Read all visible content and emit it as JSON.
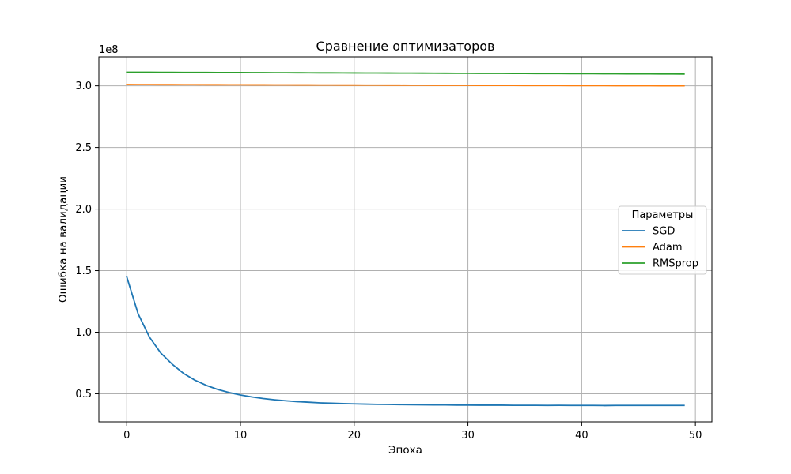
{
  "chart_data": {
    "type": "line",
    "title": "Сравнение оптимизаторов",
    "xlabel": "Эпоха",
    "ylabel": "Ошибка на валидации",
    "y_multiplier_label": "1e8",
    "xlim": [
      -2.45,
      51.45
    ],
    "ylim": [
      0.272,
      3.235
    ],
    "x_ticks": [
      0,
      10,
      20,
      30,
      40,
      50
    ],
    "y_ticks": [
      0.5,
      1.0,
      1.5,
      2.0,
      2.5,
      3.0
    ],
    "x_tick_labels": [
      "0",
      "10",
      "20",
      "30",
      "40",
      "50"
    ],
    "y_tick_labels": [
      "0.5",
      "1.0",
      "1.5",
      "2.0",
      "2.5",
      "3.0"
    ],
    "grid": true,
    "legend": {
      "title": "Параметры",
      "position": "center-right"
    },
    "x": [
      0,
      1,
      2,
      3,
      4,
      5,
      6,
      7,
      8,
      9,
      10,
      11,
      12,
      13,
      14,
      15,
      16,
      17,
      18,
      19,
      20,
      21,
      22,
      23,
      24,
      25,
      26,
      27,
      28,
      29,
      30,
      31,
      32,
      33,
      34,
      35,
      36,
      37,
      38,
      39,
      40,
      41,
      42,
      43,
      44,
      45,
      46,
      47,
      48,
      49
    ],
    "series": [
      {
        "name": "SGD",
        "color": "#1f77b4",
        "values": [
          1.45,
          1.15,
          0.96,
          0.83,
          0.74,
          0.665,
          0.61,
          0.568,
          0.535,
          0.51,
          0.49,
          0.474,
          0.461,
          0.451,
          0.443,
          0.436,
          0.431,
          0.426,
          0.423,
          0.42,
          0.418,
          0.416,
          0.414,
          0.413,
          0.412,
          0.411,
          0.41,
          0.409,
          0.409,
          0.408,
          0.408,
          0.407,
          0.407,
          0.407,
          0.406,
          0.406,
          0.406,
          0.405,
          0.406,
          0.405,
          0.405,
          0.405,
          0.404,
          0.405,
          0.405,
          0.405,
          0.405,
          0.405,
          0.405,
          0.405
        ]
      },
      {
        "name": "Adam",
        "color": "#ff7f0e",
        "values": [
          3.01,
          3.0098,
          3.0096,
          3.0094,
          3.0092,
          3.009,
          3.0088,
          3.0086,
          3.0084,
          3.0082,
          3.008,
          3.0078,
          3.0076,
          3.0074,
          3.0072,
          3.007,
          3.0068,
          3.0066,
          3.0064,
          3.0062,
          3.006,
          3.0058,
          3.0056,
          3.0054,
          3.0052,
          3.005,
          3.0048,
          3.0046,
          3.0044,
          3.0042,
          3.004,
          3.0038,
          3.0036,
          3.0034,
          3.0032,
          3.003,
          3.0028,
          3.0026,
          3.0024,
          3.0022,
          3.002,
          3.0018,
          3.0016,
          3.0014,
          3.0012,
          3.001,
          3.0008,
          3.0006,
          3.0004,
          3.0
        ]
      },
      {
        "name": "RMSprop",
        "color": "#2ca02c",
        "values": [
          3.11,
          3.1097,
          3.1094,
          3.1091,
          3.1088,
          3.1085,
          3.1082,
          3.1079,
          3.1076,
          3.1073,
          3.107,
          3.1067,
          3.1064,
          3.1061,
          3.1058,
          3.1055,
          3.1052,
          3.1049,
          3.1046,
          3.1043,
          3.104,
          3.1037,
          3.1034,
          3.1031,
          3.1028,
          3.1025,
          3.1022,
          3.1019,
          3.1016,
          3.1013,
          3.101,
          3.1007,
          3.1004,
          3.1001,
          3.0998,
          3.0995,
          3.0992,
          3.0989,
          3.0986,
          3.0983,
          3.098,
          3.0977,
          3.0974,
          3.0971,
          3.0968,
          3.0965,
          3.0962,
          3.0959,
          3.0956,
          3.095
        ]
      }
    ]
  }
}
